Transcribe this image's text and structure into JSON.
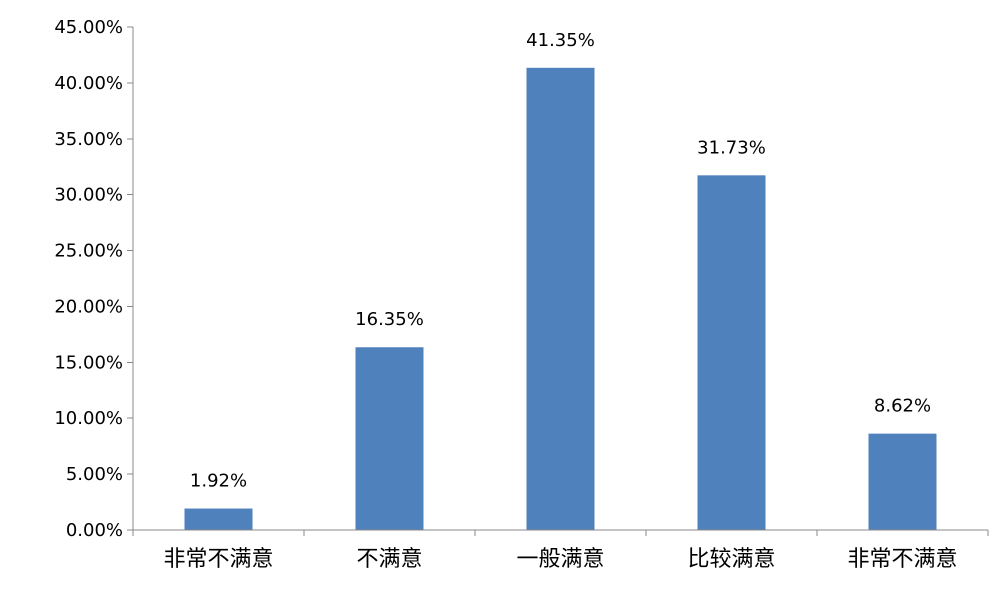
{
  "chart_data": {
    "type": "bar",
    "title": "",
    "xlabel": "",
    "ylabel": "",
    "categories": [
      "非常不满意",
      "不满意",
      "一般满意",
      "比较满意",
      "非常不满意"
    ],
    "values": [
      1.92,
      16.35,
      41.35,
      31.73,
      8.62
    ],
    "data_labels": [
      "1.92%",
      "16.35%",
      "41.35%",
      "31.73%",
      "8.62%"
    ],
    "ylim": [
      0,
      45
    ],
    "y_ticks": [
      0,
      5,
      10,
      15,
      20,
      25,
      30,
      35,
      40,
      45
    ],
    "y_tick_labels": [
      "0.00%",
      "5.00%",
      "10.00%",
      "15.00%",
      "20.00%",
      "25.00%",
      "30.00%",
      "35.00%",
      "40.00%",
      "45.00%"
    ],
    "grid": false,
    "legend": "none",
    "colors": {
      "bar": "#4f81bd",
      "axis": "#888888",
      "text": "#000000"
    }
  }
}
